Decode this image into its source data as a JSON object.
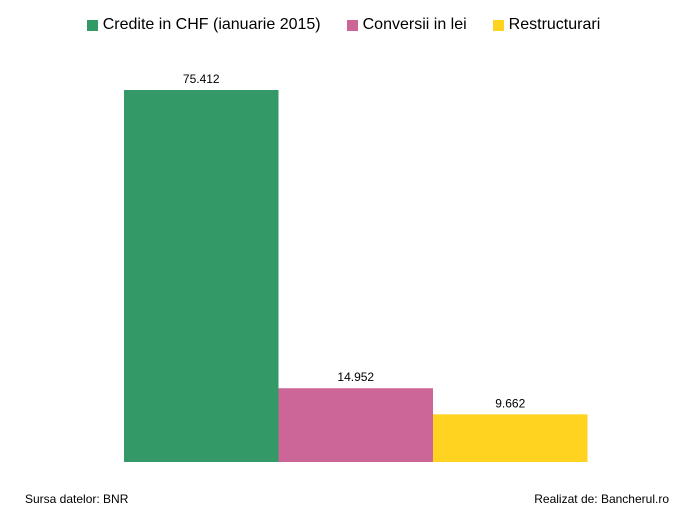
{
  "chart_data": {
    "type": "bar",
    "categories": [
      "Credite in CHF (ianuarie 2015)",
      "Conversii in lei",
      "Restructurari"
    ],
    "series": [
      {
        "name": "Credite in CHF (ianuarie 2015)",
        "color": "#339966",
        "value": 75412,
        "label": "75.412"
      },
      {
        "name": "Conversii in lei",
        "color": "#CC6699",
        "value": 14952,
        "label": "14.952"
      },
      {
        "name": "Restructurari",
        "color": "#FFD320",
        "value": 9662,
        "label": "9.662"
      }
    ],
    "ylim": [
      0,
      75412
    ],
    "grid": false,
    "legend_position": "top"
  },
  "footer": {
    "source": "Sursa datelor: BNR",
    "credit": "Realizat de: Bancherul.ro"
  }
}
